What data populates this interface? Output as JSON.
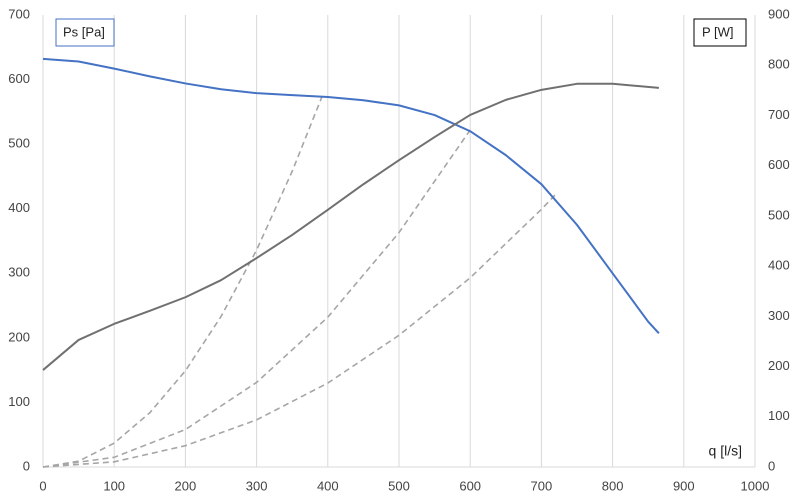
{
  "chart_data": {
    "type": "line",
    "x_label": "q [l/s]",
    "xlim": [
      0,
      1000
    ],
    "xticks": [
      0,
      100,
      200,
      300,
      400,
      500,
      600,
      700,
      800,
      900,
      1000
    ],
    "ylim": [
      0,
      700
    ],
    "yticks": [
      0,
      100,
      200,
      300,
      400,
      500,
      600,
      700
    ],
    "y2lim": [
      0,
      900
    ],
    "y2ticks": [
      0,
      100,
      200,
      300,
      400,
      500,
      600,
      700,
      800,
      900
    ],
    "grid": "x",
    "series": [
      {
        "name": "Ps [Pa]",
        "color": "#4472c4",
        "style": "solid",
        "x": [
          0,
          50,
          100,
          150,
          200,
          250,
          300,
          350,
          400,
          450,
          500,
          550,
          600,
          650,
          700,
          750,
          800,
          850,
          865
        ],
        "values": [
          632,
          628,
          617,
          605,
          594,
          585,
          579,
          576,
          573,
          568,
          560,
          545,
          520,
          483,
          438,
          375,
          300,
          225,
          207
        ]
      },
      {
        "name": "P [W]",
        "color": "#707070",
        "style": "solid",
        "axis": "y2",
        "x": [
          0,
          50,
          100,
          150,
          200,
          250,
          300,
          350,
          400,
          450,
          500,
          550,
          600,
          650,
          700,
          750,
          800,
          865
        ],
        "values": [
          193,
          253,
          285,
          311,
          338,
          372,
          416,
          462,
          512,
          563,
          611,
          657,
          701,
          731,
          751,
          763,
          763,
          755
        ]
      },
      {
        "color": "#a6a6a6",
        "style": "dashed",
        "x": [
          0,
          50,
          100,
          150,
          200,
          250,
          300,
          350,
          392
        ],
        "values": [
          0,
          9,
          37,
          84,
          149,
          233,
          336,
          458,
          574
        ]
      },
      {
        "color": "#a6a6a6",
        "style": "dashed",
        "x": [
          0,
          100,
          200,
          300,
          400,
          500,
          600
        ],
        "values": [
          0,
          15,
          58,
          131,
          232,
          363,
          522
        ]
      },
      {
        "color": "#a6a6a6",
        "style": "dashed",
        "x": [
          0,
          100,
          200,
          300,
          400,
          500,
          600,
          700,
          719
        ],
        "values": [
          0,
          8,
          33,
          73,
          130,
          204,
          293,
          399,
          421
        ]
      }
    ]
  }
}
